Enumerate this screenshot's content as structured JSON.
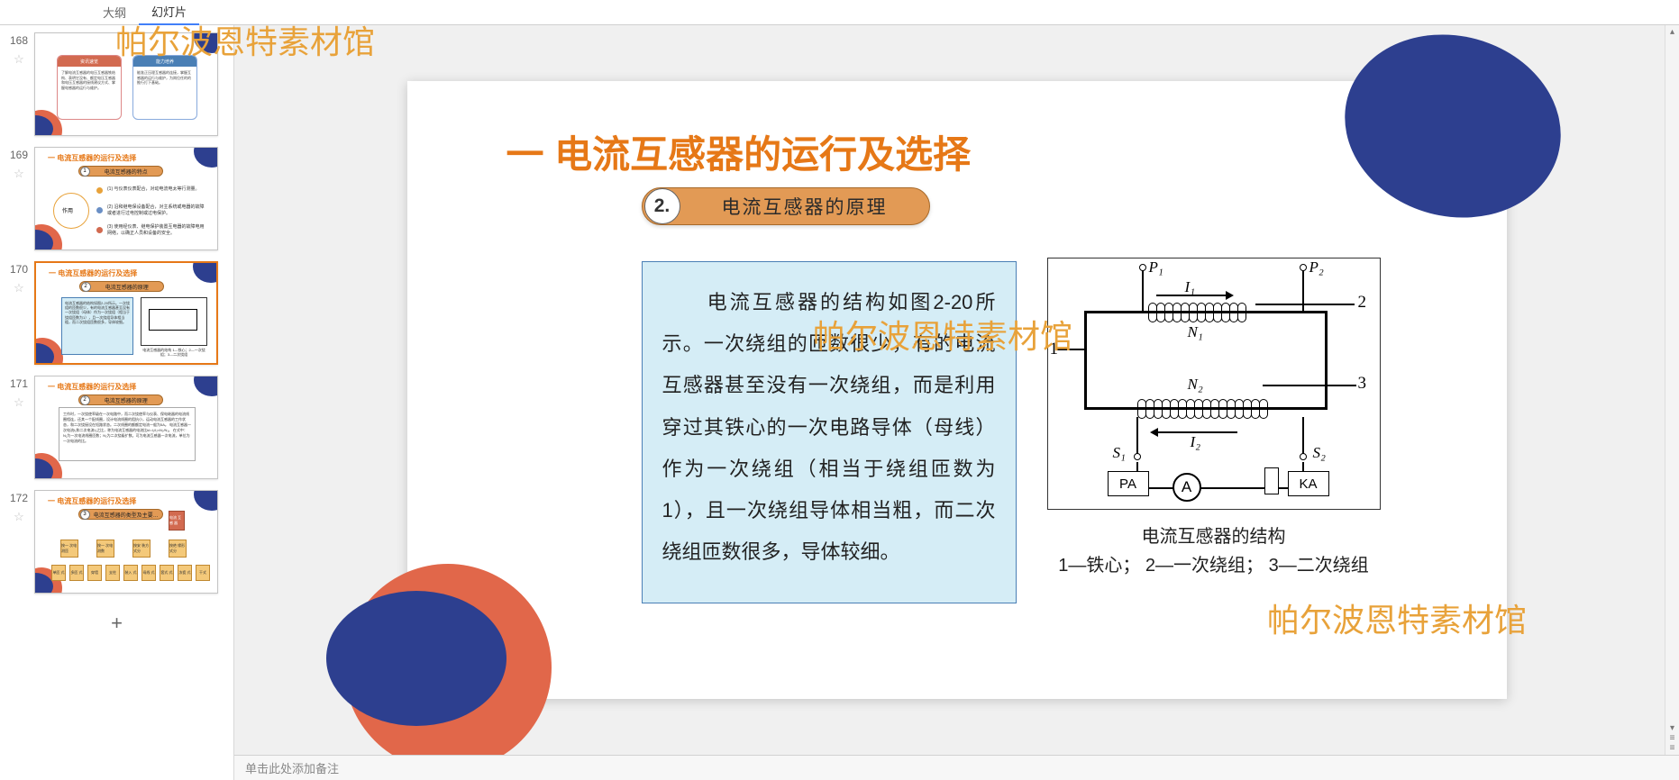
{
  "tabs": {
    "outline": "大纲",
    "slides": "幻灯片"
  },
  "watermark": "帕尔波恩特素材馆",
  "notes_placeholder": "单击此处添加备注",
  "add_slide_symbol": "+",
  "scroll": {
    "up": "▴",
    "down": "▾",
    "dbl": "≡"
  },
  "thumbnails": [
    {
      "num": "168"
    },
    {
      "num": "169"
    },
    {
      "num": "170"
    },
    {
      "num": "171"
    },
    {
      "num": "172"
    }
  ],
  "thumb168": {
    "left_header": "资讯速览",
    "left_body": "了解电流互感器的电压互感器铁结构、表明它没有、额定电压互感器和电压互感器的接线建议方式、掌握电感器的运行与维护。",
    "right_header": "能力培养",
    "right_body": "能准正压理互感器的连接，掌握互感器的运行与维护，为岗位任的的推行打下基础。"
  },
  "thumb169": {
    "title": "一  电流互感器的运行及选择",
    "badge_num": "1",
    "badge_text": "电流互感器的特点",
    "center": "作用",
    "line1": "(1)  与仪表仪表配合，对动电流电太等行测量。",
    "line2": "(2)  沿和继电保设备配合，对主系统或电器的故障或者进行过电控制或过电保护。",
    "line3": "(3)  使用经仪表、继电保护装置互电器的故障电用网络，以确正人员和设备的安全。"
  },
  "thumb170": {
    "title": "一  电流互感器的运行及选择",
    "badge_num": "2",
    "badge_text": "电流互感器的原理",
    "body": "电流互感器的结构如图2-20所示。一次绕组的匝数很少，有的电流互感器甚至没有一次绕组（母体）作为一次绕组（相当于绕组匝数为1），且一次绕组导体相当粗，而二次绕组匝数很多，导体较细。",
    "caption": "电流互感器的结构\n1—铁心；2—一次绕组；3—二次绕组"
  },
  "thumb171": {
    "title": "一  电流互感器的运行及选择",
    "badge_num": "2",
    "badge_text": "电流互感器的原理",
    "body": "工作时，一次绕使率级在一次电路中，而二次绕使率与仪表、保电继器的电流线圈相连，还其一个配线圈，设计电流线圈的阻抗小，运动电流互感器的工作状态，和二次绕接设在短路状态。二次线圈的额额定电流一般为5A。\n电流互感器一次电流I₁和二次电流I₂之比，称为电流互感器的电流比kI=I₁/I₂≈N₂/N₁。\n在式中：N₁为一次电流线圈匝数；N₂为二次绕级扩数。可为电流互感器一次电流，单位为一次电流的比。"
  },
  "thumb172": {
    "title": "一  电流互感器的运行及选择",
    "badge_num": "3",
    "badge_text": "电流互感器的类型及主要…",
    "red_box": "电流\n互感\n器",
    "row1": [
      "按一\n次电\n测匝",
      "按一\n次电\n测数",
      "按安\n装方\n式分",
      "按绝\n缘形\n式分"
    ],
    "row2": [
      "单匝\n式",
      "多匝\n式",
      "穿墙",
      "支柱",
      "装入\n式",
      "母线\n式",
      "套式\n式",
      "冻瓷\n式",
      "干式"
    ]
  },
  "slide": {
    "title": "一  电流互感器的运行及选择",
    "badge_num": "2.",
    "badge_text": "电流互感器的原理",
    "body_text": "　　电流互感器的结构如图2-20所示。一次绕组的匝数很少，有的电流互感器甚至没有一次绕组，而是利用穿过其铁心的一次电路导体（母线）作为一次绕组（相当于绕组匝数为1），且一次绕组导体相当粗，而二次绕组匝数很多，导体较细。",
    "caption_line1": "电流互感器的结构",
    "caption_line2": "1—铁心；  2—一次绕组；  3—二次绕组",
    "labels": {
      "P1": "P₁",
      "P2": "P₂",
      "I1": "I₁",
      "I2": "I₂",
      "N1": "N₁",
      "N2": "N₂",
      "S1": "S₁",
      "S2": "S₂",
      "one": "1",
      "two": "2",
      "three": "3",
      "PA": "PA",
      "A": "A",
      "KA": "KA"
    }
  }
}
